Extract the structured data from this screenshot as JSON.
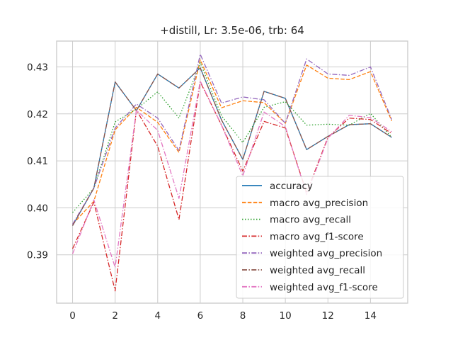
{
  "chart_data": {
    "type": "line",
    "title": "+distill, Lr: 3.5e-06, trb: 64",
    "xlabel": "",
    "ylabel": "",
    "xlim": [
      -0.75,
      15.75
    ],
    "ylim": [
      0.3797,
      0.4355
    ],
    "x_ticks": [
      0,
      2,
      4,
      6,
      8,
      10,
      12,
      14
    ],
    "x_tick_labels": [
      "0",
      "2",
      "4",
      "6",
      "8",
      "10",
      "12",
      "14"
    ],
    "y_ticks": [
      0.39,
      0.4,
      0.41,
      0.42,
      0.43
    ],
    "y_tick_labels": [
      "0.39",
      "0.40",
      "0.41",
      "0.42",
      "0.43"
    ],
    "grid": true,
    "legend_position": "lower-right",
    "x": [
      0,
      1,
      2,
      3,
      4,
      5,
      6,
      7,
      8,
      9,
      10,
      11,
      12,
      13,
      14,
      15
    ],
    "series": [
      {
        "name": "accuracy",
        "color": "#1f77b4",
        "dash": "solid",
        "values": [
          0.3962,
          0.4042,
          0.4268,
          0.4207,
          0.4285,
          0.4255,
          0.4298,
          0.4187,
          0.4103,
          0.4248,
          0.4233,
          0.4124,
          0.4152,
          0.4177,
          0.4179,
          0.415
        ]
      },
      {
        "name": "macro avg_precision",
        "color": "#ff7f0e",
        "dash": "dashed",
        "values": [
          0.3965,
          0.4014,
          0.4166,
          0.4214,
          0.4182,
          0.4118,
          0.4315,
          0.4213,
          0.4228,
          0.4224,
          0.418,
          0.4304,
          0.4276,
          0.4273,
          0.429,
          0.4185
        ]
      },
      {
        "name": "macro avg_recall",
        "color": "#2ca02c",
        "dash": "dotted",
        "values": [
          0.399,
          0.4042,
          0.4183,
          0.421,
          0.4247,
          0.4191,
          0.4309,
          0.4196,
          0.4139,
          0.4214,
          0.4226,
          0.4176,
          0.4178,
          0.4176,
          0.4201,
          0.415
        ]
      },
      {
        "name": "macro avg_f1-score",
        "color": "#d62728",
        "dash": "dashdot",
        "values": [
          0.3913,
          0.4012,
          0.3823,
          0.4208,
          0.4131,
          0.3975,
          0.4268,
          0.4176,
          0.4078,
          0.4184,
          0.417,
          0.4032,
          0.415,
          0.4191,
          0.4188,
          0.4158
        ]
      },
      {
        "name": "weighted avg_precision",
        "color": "#9467bd",
        "dash": "dashdot",
        "values": [
          0.3965,
          0.4042,
          0.417,
          0.4221,
          0.4191,
          0.4122,
          0.4327,
          0.4223,
          0.4236,
          0.423,
          0.418,
          0.4317,
          0.4285,
          0.4282,
          0.43,
          0.4188
        ]
      },
      {
        "name": "weighted avg_recall",
        "color": "#8c564b",
        "dash": "dashdot",
        "values": [
          0.3962,
          0.4042,
          0.4268,
          0.4207,
          0.4285,
          0.4255,
          0.4298,
          0.4187,
          0.4103,
          0.4248,
          0.4233,
          0.4124,
          0.4152,
          0.4177,
          0.4179,
          0.415
        ]
      },
      {
        "name": "weighted avg_f1-score",
        "color": "#e377c2",
        "dash": "dashdot",
        "values": [
          0.3902,
          0.4017,
          0.3873,
          0.4208,
          0.4165,
          0.402,
          0.427,
          0.4176,
          0.4068,
          0.4204,
          0.4173,
          0.4028,
          0.4148,
          0.4197,
          0.4192,
          0.4162
        ]
      }
    ]
  }
}
